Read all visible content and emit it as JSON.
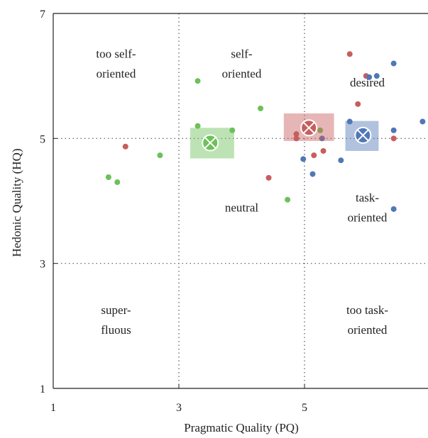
{
  "chart_data": {
    "type": "scatter",
    "xlabel": "Pragmatic Quality (PQ)",
    "ylabel": "Hedonic Quality (HQ)",
    "xlim": [
      1,
      7
    ],
    "ylim": [
      1,
      7
    ],
    "x_ticks": [
      "1",
      "3",
      "5",
      "7"
    ],
    "y_ticks": [
      "1",
      "3",
      "5",
      "7"
    ],
    "grid": "dotted at 3 and 5",
    "regions": [
      {
        "lines": [
          "too self-",
          "oriented"
        ],
        "x": 2,
        "y": 6.2
      },
      {
        "lines": [
          "self-",
          "oriented"
        ],
        "x": 4,
        "y": 6.2
      },
      {
        "lines": [
          "desired"
        ],
        "x": 6,
        "y": 5.9
      },
      {
        "lines": [
          "neutral"
        ],
        "x": 4,
        "y": 3.9
      },
      {
        "lines": [
          "task-",
          "oriented"
        ],
        "x": 6,
        "y": 3.9
      },
      {
        "lines": [
          "super-",
          "fluous"
        ],
        "x": 2,
        "y": 2.1
      },
      {
        "lines": [
          "too task-",
          "oriented"
        ],
        "x": 6,
        "y": 2.1
      }
    ],
    "series": [
      {
        "color": "#6dc05a",
        "points": [
          [
            1.88,
            4.38
          ],
          [
            2.02,
            4.3
          ],
          [
            2.7,
            4.73
          ],
          [
            3.3,
            5.92
          ],
          [
            3.3,
            5.2
          ],
          [
            3.45,
            4.93
          ],
          [
            3.85,
            5.13
          ],
          [
            4.3,
            5.48
          ],
          [
            4.73,
            4.02
          ],
          [
            5.25,
            5.13
          ]
        ],
        "mean": [
          3.5,
          4.93
        ],
        "mean_box": {
          "x": [
            3.18,
            3.88
          ],
          "y": [
            4.68,
            5.17
          ]
        }
      },
      {
        "color": "#c75e5e",
        "points": [
          [
            2.15,
            4.87
          ],
          [
            4.43,
            4.37
          ],
          [
            4.87,
            5.07
          ],
          [
            4.87,
            5.0
          ],
          [
            5.15,
            4.73
          ],
          [
            5.3,
            4.8
          ],
          [
            5.72,
            6.35
          ],
          [
            5.85,
            5.55
          ],
          [
            5.98,
            6.0
          ],
          [
            6.42,
            5.0
          ]
        ],
        "mean": [
          5.07,
          5.17
        ],
        "mean_box": {
          "x": [
            4.67,
            5.47
          ],
          "y": [
            4.96,
            5.4
          ]
        }
      },
      {
        "color": "#5177b6",
        "points": [
          [
            4.98,
            4.67
          ],
          [
            5.13,
            4.43
          ],
          [
            5.28,
            5.0
          ],
          [
            5.58,
            4.65
          ],
          [
            5.72,
            5.27
          ],
          [
            6.03,
            5.98
          ],
          [
            6.15,
            6.0
          ],
          [
            6.42,
            6.2
          ],
          [
            6.42,
            5.13
          ],
          [
            6.42,
            3.87
          ],
          [
            6.88,
            5.27
          ]
        ],
        "mean": [
          5.93,
          5.05
        ],
        "mean_box": {
          "x": [
            5.65,
            6.18
          ],
          "y": [
            4.8,
            5.28
          ]
        }
      }
    ]
  }
}
